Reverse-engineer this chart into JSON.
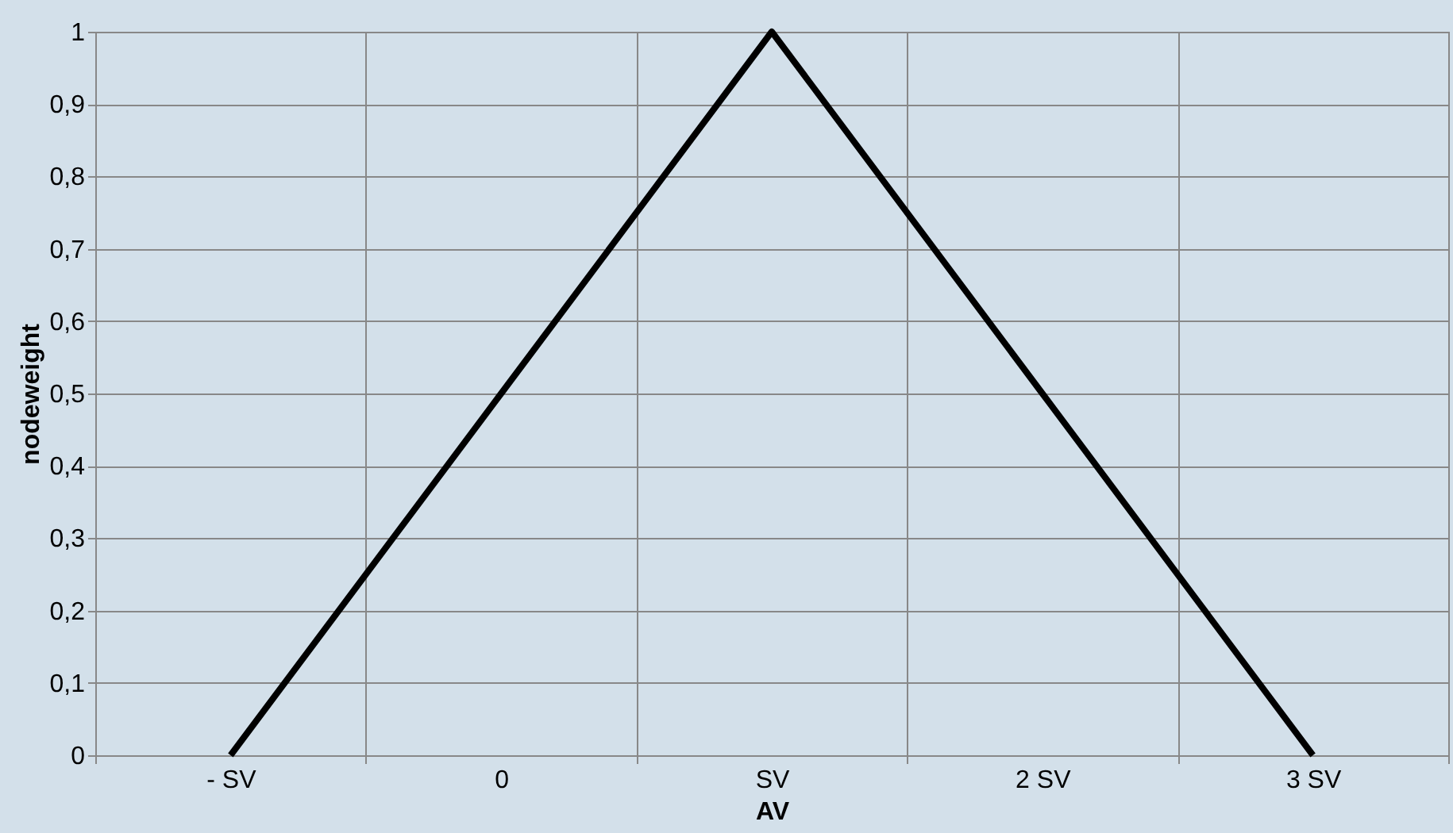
{
  "chart_data": {
    "type": "line",
    "xlabel": "AV",
    "ylabel": "nodeweight",
    "categories": [
      "- SV",
      "0",
      "SV",
      "2 SV",
      "3 SV"
    ],
    "series": [
      {
        "color": "#000000",
        "values": [
          0,
          0.5,
          1,
          0.5,
          0
        ]
      }
    ],
    "ylim": [
      0,
      1
    ],
    "yticks": [
      0,
      {
        "value": 0.1,
        "label": "0,1"
      },
      {
        "value": 0.2,
        "label": "0,2"
      },
      {
        "value": 0.3,
        "label": "0,3"
      },
      {
        "value": 0.4,
        "label": "0,4"
      },
      {
        "value": 0.5,
        "label": "0,5"
      },
      {
        "value": 0.6,
        "label": "0,6"
      },
      {
        "value": 0.7,
        "label": "0,7"
      },
      {
        "value": 0.8,
        "label": "0,8"
      },
      {
        "value": 0.9,
        "label": "0,9"
      },
      1
    ],
    "grid": true,
    "marker": "none",
    "line_style": "solid"
  }
}
